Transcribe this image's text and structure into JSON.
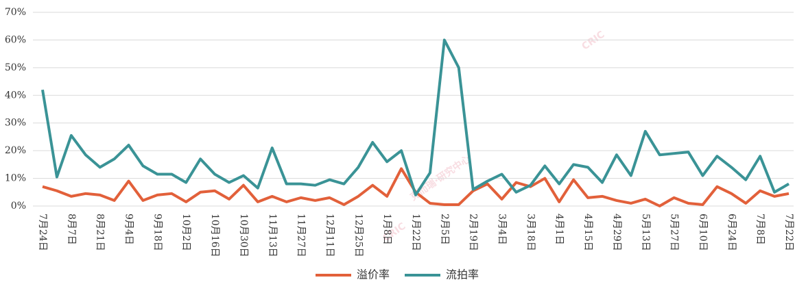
{
  "chart_data": {
    "type": "line",
    "categories": [
      "7月24日",
      null,
      "8月7日",
      null,
      "8月21日",
      null,
      "9月4日",
      null,
      "9月18日",
      null,
      "10月2日",
      null,
      "10月16日",
      null,
      "10月30日",
      null,
      "11月13日",
      null,
      "11月27日",
      null,
      "12月11日",
      null,
      "12月25日",
      null,
      "1月8日",
      null,
      "1月22日",
      null,
      "2月5日",
      null,
      "2月19日",
      null,
      "3月4日",
      null,
      "3月18日",
      null,
      "4月1日",
      null,
      "4月15日",
      null,
      "4月29日",
      null,
      "5月13日",
      null,
      "5月27日",
      null,
      "6月10日",
      null,
      "6月24日",
      null,
      "7月8日",
      null,
      "7月22日"
    ],
    "series": [
      {
        "name": "溢价率",
        "color": "#e2603a",
        "values": [
          7,
          5.5,
          3.5,
          4.5,
          4,
          2,
          9,
          2,
          4,
          4.5,
          1.5,
          5,
          5.5,
          2.5,
          7.5,
          1.5,
          3.5,
          1.5,
          3,
          2,
          3,
          0.5,
          3.5,
          7.5,
          3.5,
          13.5,
          5,
          1,
          0.5,
          0.5,
          5.5,
          8,
          2.5,
          8.5,
          7,
          10,
          1.5,
          9.5,
          3,
          3.5,
          2,
          1,
          2.5,
          0,
          3,
          1,
          0.5,
          7,
          4.5,
          1,
          5.5,
          3.5,
          4.5
        ]
      },
      {
        "name": "流拍率",
        "color": "#3a9396",
        "values": [
          42,
          10.5,
          25.5,
          18.5,
          14,
          17,
          22,
          14.5,
          11.5,
          11.5,
          8.5,
          17,
          11.5,
          8.5,
          11,
          6.5,
          21,
          8,
          8,
          7.5,
          9.5,
          8,
          14,
          23,
          16,
          20,
          4,
          12,
          60,
          50,
          6,
          9,
          11.5,
          5,
          7.5,
          14.5,
          8,
          15,
          14,
          8.5,
          18.5,
          11,
          27,
          18.5,
          19,
          19.5,
          11,
          18,
          14,
          9.5,
          18,
          5,
          8
        ]
      }
    ],
    "ylim": [
      0,
      70
    ],
    "yticks": [
      {
        "value": 0,
        "label": "0%"
      },
      {
        "value": 10,
        "label": "10%"
      },
      {
        "value": 20,
        "label": "20%"
      },
      {
        "value": 30,
        "label": "30%"
      },
      {
        "value": 40,
        "label": "40%"
      },
      {
        "value": 50,
        "label": "50%"
      },
      {
        "value": 60,
        "label": "60%"
      },
      {
        "value": 70,
        "label": "70%"
      }
    ],
    "grid": true,
    "legend": "bottom",
    "watermark": [
      "CRIC",
      "克而瑞·研究中心"
    ]
  }
}
